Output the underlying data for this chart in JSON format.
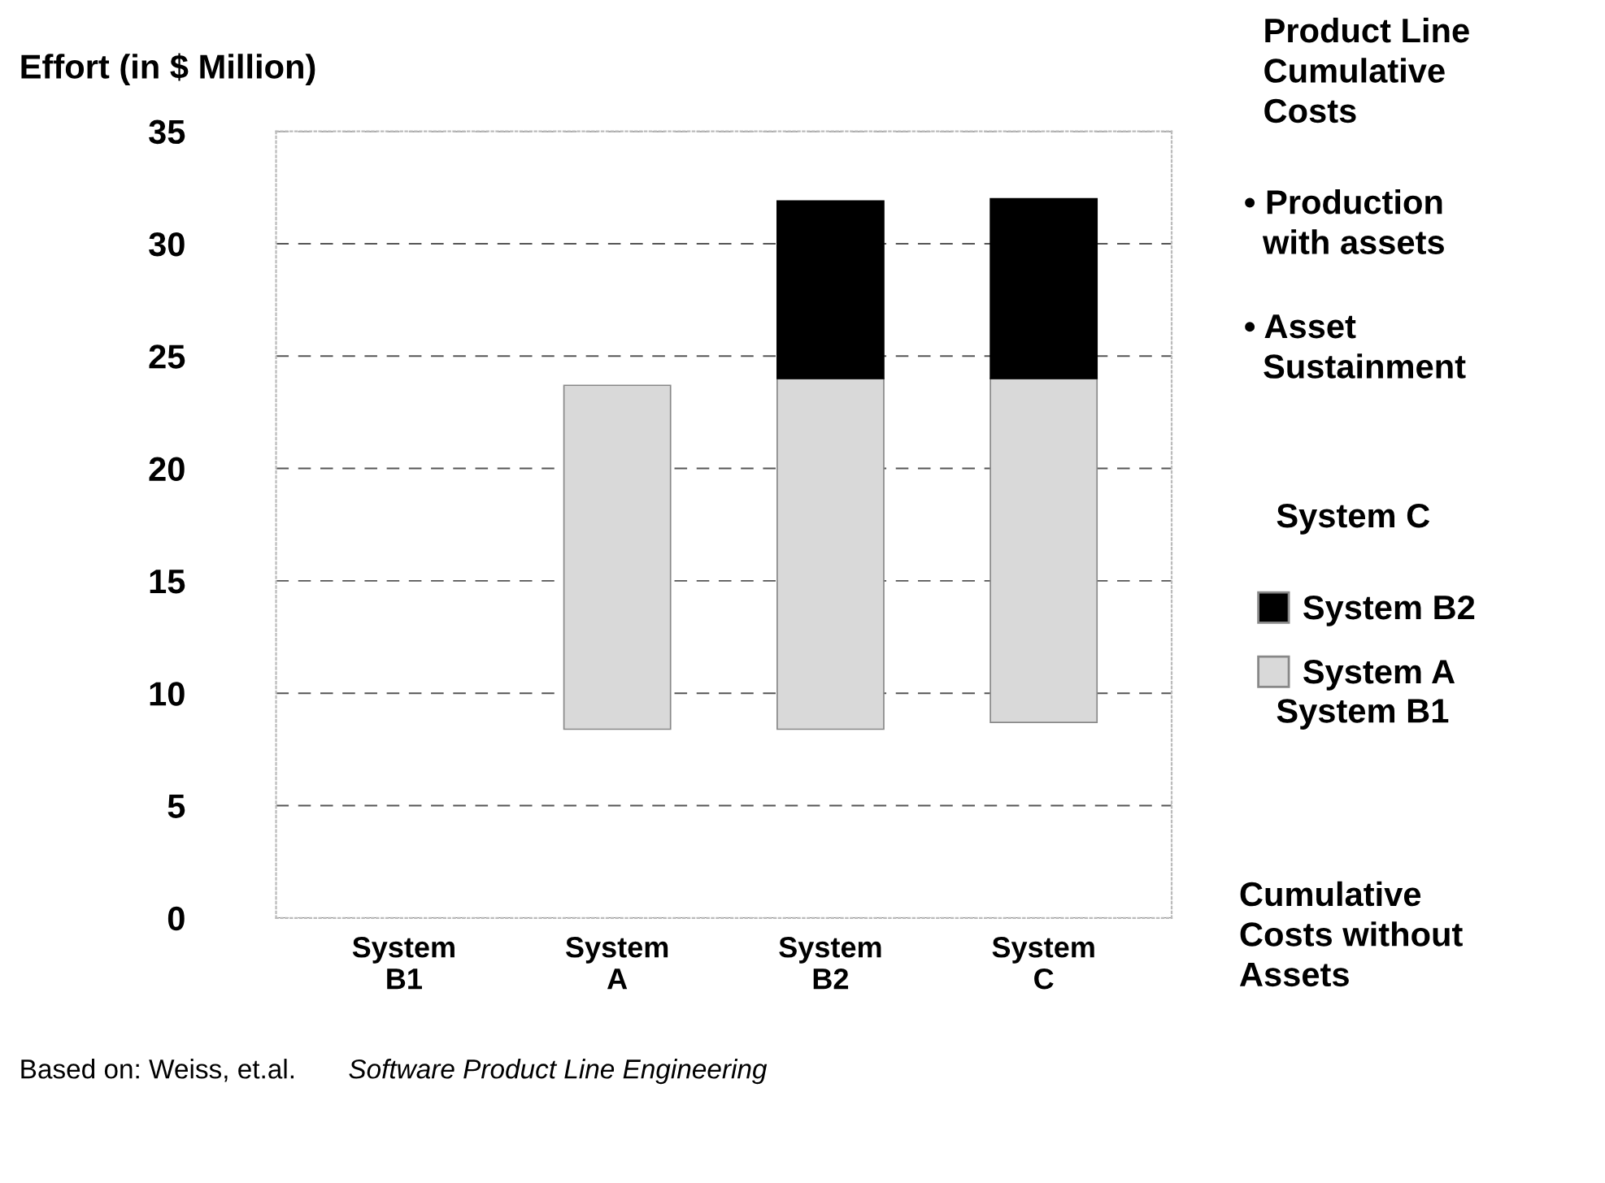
{
  "chart_data": {
    "type": "bar",
    "ylabel": "Effort (in $ Million)",
    "categories": [
      "System\nB1",
      "System\nA",
      "System\nB2",
      "System\nC"
    ],
    "series": [
      {
        "name": "System A",
        "color": "#d9d9d9",
        "base": [
          null,
          8.4,
          8.4,
          8.7
        ],
        "values": [
          null,
          15.3,
          15.6,
          15.3
        ]
      },
      {
        "name": "System B2",
        "color": "#000000",
        "base": [
          null,
          null,
          24.0,
          24.0
        ],
        "values": [
          null,
          null,
          7.9,
          8.0
        ]
      }
    ],
    "ylim": [
      0,
      35
    ],
    "yticks": [
      0,
      5,
      10,
      15,
      20,
      25,
      30,
      35
    ],
    "grid": "y",
    "legend": "right",
    "annotations": [
      "Product Line\nCumulative\nCosts",
      "• Production\n  with assets",
      "• Asset\n  Sustainment",
      "System C",
      "System B1",
      "Cumulative\nCosts without\nAssets",
      "Based on: Weiss, et.al.",
      "Software Product Line Engineering"
    ]
  }
}
